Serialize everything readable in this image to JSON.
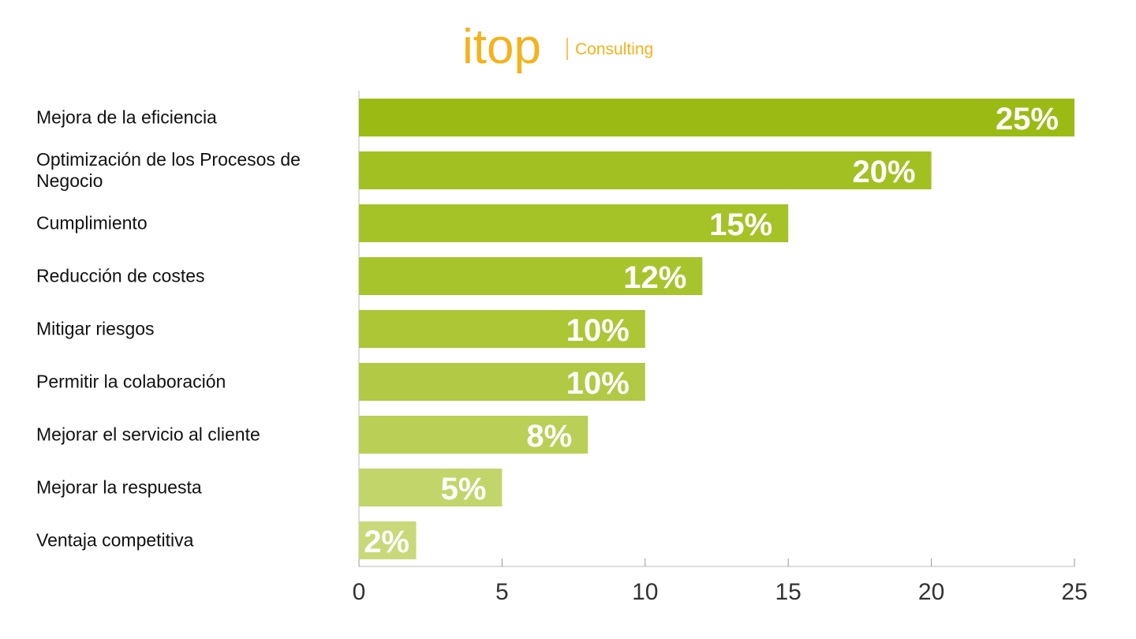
{
  "chart_data": {
    "type": "hbar",
    "logo": "itop",
    "logo_subtitle": "Consulting",
    "categories": [
      "Mejora de la eficiencia",
      "Optimización de los Procesos de Negocio",
      "Cumplimiento",
      "Reducción de costes",
      "Mitigar riesgos",
      "Permitir la colaboración",
      "Mejorar el servicio al cliente",
      "Mejorar la respuesta",
      "Ventaja competitiva"
    ],
    "values": [
      25,
      20,
      15,
      12,
      10,
      10,
      8,
      5,
      2
    ],
    "value_labels": [
      "25%",
      "20%",
      "15%",
      "12%",
      "10%",
      "10%",
      "8%",
      "5%",
      "2%"
    ],
    "colors": [
      "#9bbb14",
      "#a2c022",
      "#a5c226",
      "#a8c42c",
      "#acc636",
      "#b1c944",
      "#b9cf56",
      "#c2d56a",
      "#c9d97a"
    ],
    "xlim": [
      0,
      25
    ],
    "xticks": [
      0,
      5,
      10,
      15,
      20,
      25
    ]
  }
}
